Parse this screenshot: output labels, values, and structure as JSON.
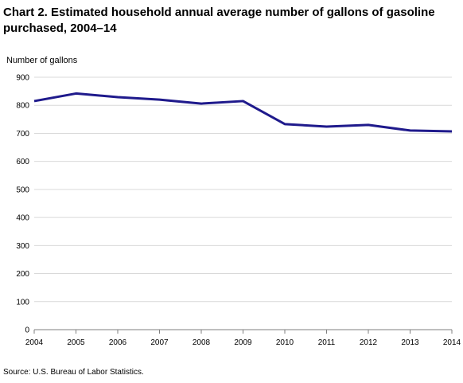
{
  "chart_data": {
    "type": "line",
    "title": "Chart 2. Estimated household annual average number of gallons of gasoline purchased, 2004–14",
    "ylabel": "Number of gallons",
    "xlabel": "",
    "x": [
      2004,
      2005,
      2006,
      2007,
      2008,
      2009,
      2010,
      2011,
      2012,
      2013,
      2014
    ],
    "x_tick_labels": [
      "2004",
      "2005",
      "2006",
      "2007",
      "2008",
      "2009",
      "2010",
      "2011",
      "2012",
      "2013",
      "2014"
    ],
    "y_tick_labels": [
      "0",
      "100",
      "200",
      "300",
      "400",
      "500",
      "600",
      "700",
      "800",
      "900"
    ],
    "ylim": [
      0,
      900
    ],
    "y_ticks": [
      0,
      100,
      200,
      300,
      400,
      500,
      600,
      700,
      800,
      900
    ],
    "grid": true,
    "series": [
      {
        "values": [
          815,
          842,
          829,
          820,
          806,
          815,
          733,
          724,
          730,
          710,
          707
        ],
        "color": "#1f1a8c"
      }
    ],
    "source": "Source: U.S. Bureau of Labor Statistics."
  }
}
